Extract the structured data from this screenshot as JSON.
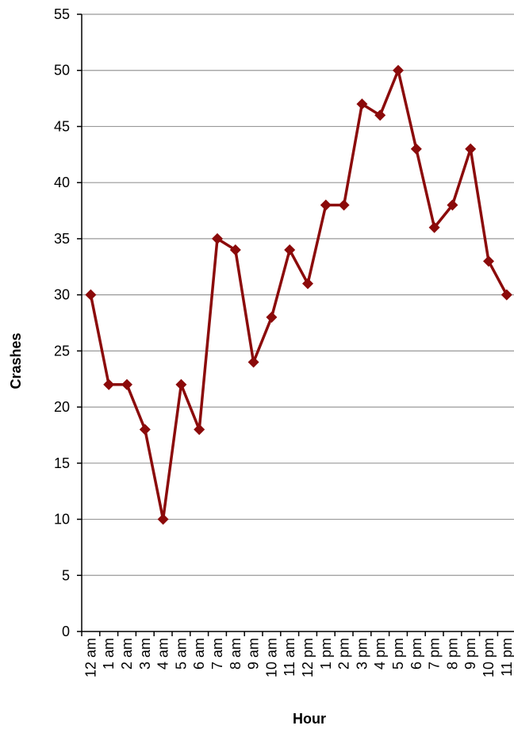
{
  "chart_data": {
    "type": "line",
    "title": "",
    "xlabel": "Hour",
    "ylabel": "Crashes",
    "ylim": [
      0,
      55
    ],
    "yticks": [
      "0",
      "5",
      "10",
      "15",
      "20",
      "25",
      "30",
      "35",
      "40",
      "45",
      "50",
      "55"
    ],
    "grid": true,
    "legend": "none",
    "categories": [
      "12 am",
      "1 am",
      "2 am",
      "3 am",
      "4 am",
      "5 am",
      "6 am",
      "7 am",
      "8 am",
      "9 am",
      "10 am",
      "11 am",
      "12 pm",
      "1 pm",
      "2 pm",
      "3 pm",
      "4 pm",
      "5 pm",
      "6 pm",
      "7 pm",
      "8 pm",
      "9 pm",
      "10 pm",
      "11 pm"
    ],
    "series": [
      {
        "values": [
          30,
          22,
          22,
          18,
          10,
          22,
          18,
          35,
          34,
          24,
          28,
          34,
          31,
          38,
          38,
          47,
          46,
          50,
          43,
          36,
          38,
          43,
          33,
          30
        ],
        "color": "#8b0a0a",
        "marker": "diamond"
      }
    ],
    "gridline_color": "#999999",
    "axis_color": "#000000"
  }
}
